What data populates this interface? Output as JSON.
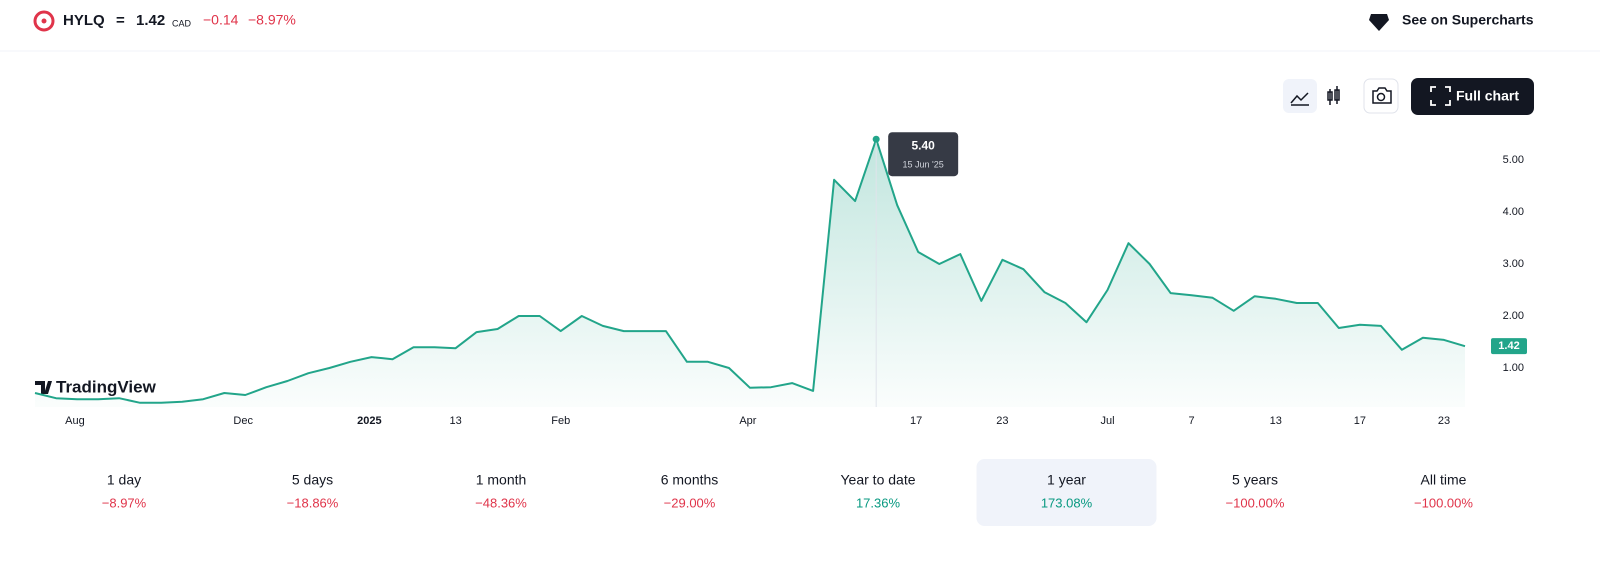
{
  "header": {
    "symbol": "HYLQ",
    "separator": "=",
    "price": "1.42",
    "currency": "CAD",
    "change": "−0.14",
    "change_percent": "−8.97%",
    "link": "See on Supercharts"
  },
  "toolbar": {
    "full_chart": "Full chart"
  },
  "logo": "TradingView",
  "chart_data": {
    "type": "area",
    "color": "#22a58a",
    "series": [
      {
        "name": "HYLQ",
        "color": "#22a58a",
        "values": [
          0.52,
          0.42,
          0.4,
          0.4,
          0.42,
          0.33,
          0.33,
          0.35,
          0.4,
          0.52,
          0.48,
          0.63,
          0.75,
          0.9,
          1.0,
          1.12,
          1.21,
          1.17,
          1.4,
          1.4,
          1.38,
          1.69,
          1.75,
          2.0,
          2.0,
          1.71,
          2.0,
          1.81,
          1.71,
          1.71,
          1.71,
          1.12,
          1.12,
          1.0,
          0.62,
          0.63,
          0.71,
          0.56,
          4.62,
          4.21,
          5.4,
          4.13,
          3.23,
          3.0,
          3.19,
          2.29,
          3.08,
          2.9,
          2.46,
          2.25,
          1.88,
          2.5,
          3.4,
          3.0,
          2.44,
          2.4,
          2.35,
          2.1,
          2.38,
          2.33,
          2.25,
          2.25,
          1.77,
          1.83,
          1.81,
          1.35,
          1.58,
          1.54,
          1.42
        ]
      }
    ],
    "xlim": [
      0,
      68
    ],
    "xticks": [
      {
        "value": 1.9,
        "label": "Aug"
      },
      {
        "value": 9.9,
        "label": "Dec"
      },
      {
        "value": 15.9,
        "label": "2025"
      },
      {
        "value": 20,
        "label": "13"
      },
      {
        "value": 25,
        "label": "Feb"
      },
      {
        "value": 33.9,
        "label": "Apr"
      },
      {
        "value": 41.9,
        "label": "17"
      },
      {
        "value": 46,
        "label": "23"
      },
      {
        "value": 51,
        "label": "Jul"
      },
      {
        "value": 55,
        "label": "7"
      },
      {
        "value": 59,
        "label": "13"
      },
      {
        "value": 63,
        "label": "17"
      },
      {
        "value": 67,
        "label": "23"
      }
    ],
    "ylim": [
      0.25,
      5.75
    ],
    "yticks": [
      {
        "value": 1,
        "label": "1.00"
      },
      {
        "value": 2,
        "label": "2.00"
      },
      {
        "value": 3,
        "label": "3.00"
      },
      {
        "value": 4,
        "label": "4.00"
      },
      {
        "value": 5,
        "label": "5.00"
      }
    ],
    "tooltip": {
      "value": "5.40",
      "date": "15 Jun '25"
    }
  },
  "periods": {
    "selected_index": 5,
    "items": [
      {
        "label": "1 day",
        "change": "−8.97%",
        "value": -8.97
      },
      {
        "label": "5 days",
        "change": "−18.86%",
        "value": -18.86
      },
      {
        "label": "1 month",
        "change": "−48.36%",
        "value": -48.36
      },
      {
        "label": "6 months",
        "change": "−29.00%",
        "value": -29.0
      },
      {
        "label": "Year to date",
        "change": "17.36%",
        "value": 17.36
      },
      {
        "label": "1 year",
        "change": "173.08%",
        "value": 173.08
      },
      {
        "label": "5 years",
        "change": "−100.00%",
        "value": -100.0
      },
      {
        "label": "All time",
        "change": "−100.00%",
        "value": -100.0
      }
    ]
  }
}
